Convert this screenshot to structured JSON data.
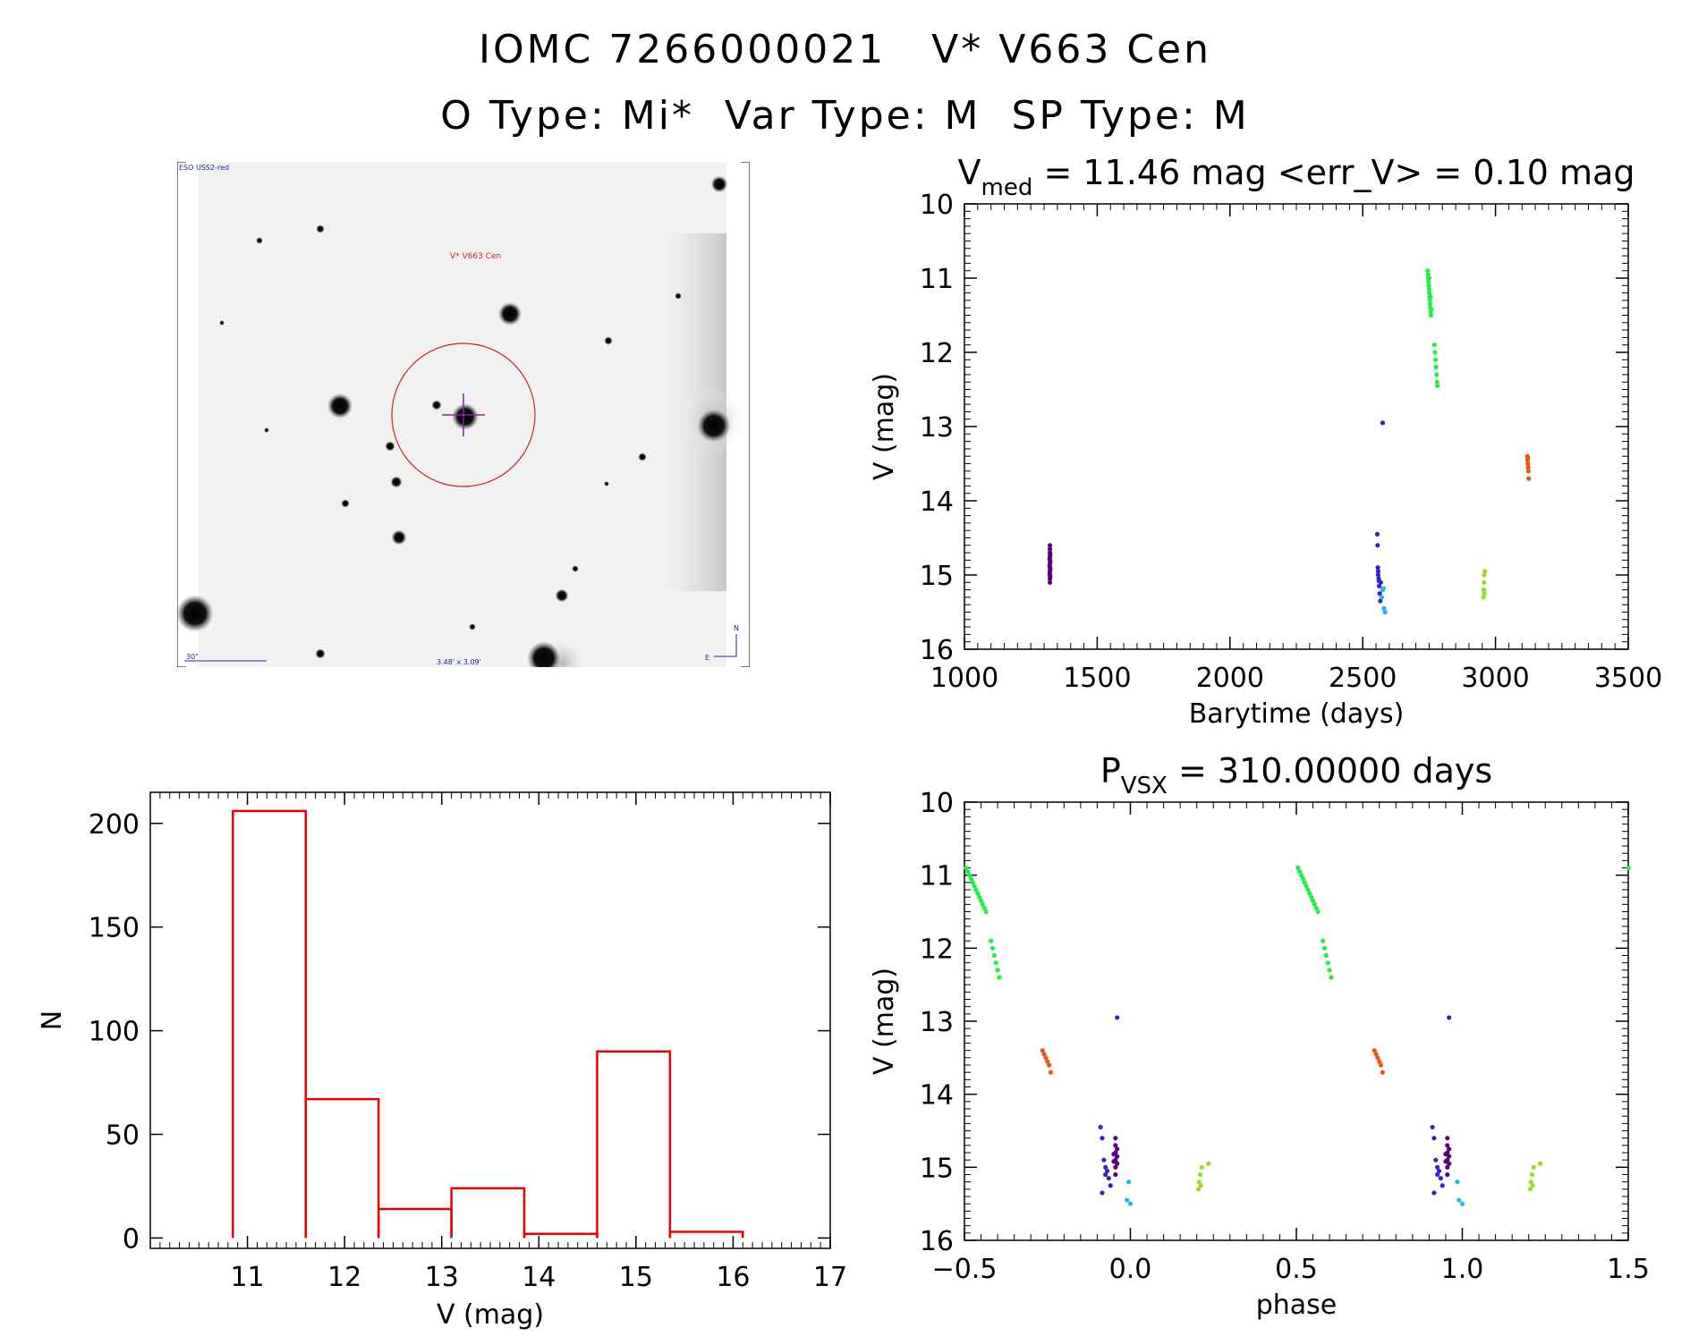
{
  "header": {
    "line1": "IOMC 7266000021   V* V663 Cen",
    "line2": "O Type: Mi*  Var Type: M  SP Type: M"
  },
  "finder": {
    "survey_label": "ESO USS2-red",
    "target_label": "V* V663 Cen",
    "scale_label": "30\"",
    "size_label": "3.48' x 3.09'",
    "north_label": "N",
    "east_label": "E"
  },
  "colors": {
    "hist": "#ee0000",
    "target_circle": "#cc2222",
    "crosshair": "#8822aa",
    "annotation_blue": "#1a2a9a"
  },
  "chart_data": [
    {
      "type": "scatter",
      "id": "lightcurve",
      "title_main": "V",
      "title_sub": "med",
      "title_rest": " = 11.46 mag <err_V> = 0.10 mag",
      "xlabel": "Barytime (days)",
      "ylabel": "V (mag)",
      "xlim": [
        1000,
        3500
      ],
      "ylim": [
        16,
        10
      ],
      "xticks": [
        1000,
        1500,
        2000,
        2500,
        3000,
        3500
      ],
      "yticks": [
        10,
        11,
        12,
        13,
        14,
        15,
        16
      ],
      "series": [
        {
          "name": "season1",
          "color": "#5a007a",
          "points": [
            [
              1322,
              14.6
            ],
            [
              1322,
              14.65
            ],
            [
              1322,
              14.7
            ],
            [
              1322,
              14.75
            ],
            [
              1322,
              14.8
            ],
            [
              1322,
              14.85
            ],
            [
              1322,
              14.9
            ],
            [
              1322,
              14.95
            ],
            [
              1322,
              15.0
            ],
            [
              1322,
              15.05
            ],
            [
              1322,
              15.1
            ],
            [
              1323,
              14.72
            ],
            [
              1323,
              14.82
            ],
            [
              1323,
              14.92
            ],
            [
              1323,
              15.02
            ],
            [
              1321,
              14.78
            ],
            [
              1321,
              14.88
            ],
            [
              1321,
              14.98
            ]
          ]
        },
        {
          "name": "season2a",
          "color": "#3322cc",
          "points": [
            [
              2555,
              14.45
            ],
            [
              2556,
              14.6
            ],
            [
              2557,
              14.9
            ],
            [
              2558,
              15.0
            ],
            [
              2560,
              15.05
            ],
            [
              2562,
              15.15
            ],
            [
              2564,
              15.25
            ],
            [
              2566,
              15.35
            ],
            [
              2568,
              15.1
            ],
            [
              2558,
              14.95
            ],
            [
              2561,
              15.08
            ],
            [
              2575,
              12.95
            ]
          ]
        },
        {
          "name": "season2b",
          "color": "#22b8e8",
          "points": [
            [
              2575,
              15.2
            ],
            [
              2578,
              15.18
            ],
            [
              2580,
              15.45
            ],
            [
              2584,
              15.5
            ],
            [
              2572,
              15.3
            ]
          ]
        },
        {
          "name": "season3",
          "color": "#22ee44",
          "points": [
            [
              2745,
              10.9
            ],
            [
              2746,
              10.95
            ],
            [
              2747,
              11.0
            ],
            [
              2748,
              11.05
            ],
            [
              2749,
              11.1
            ],
            [
              2750,
              11.15
            ],
            [
              2751,
              11.2
            ],
            [
              2752,
              11.25
            ],
            [
              2753,
              11.3
            ],
            [
              2754,
              11.35
            ],
            [
              2755,
              11.4
            ],
            [
              2756,
              11.45
            ],
            [
              2757,
              11.5
            ],
            [
              2758,
              11.42
            ],
            [
              2755,
              11.25
            ],
            [
              2750,
              11.0
            ],
            [
              2770,
              11.9
            ],
            [
              2772,
              12.0
            ],
            [
              2774,
              12.1
            ],
            [
              2776,
              12.2
            ],
            [
              2778,
              12.3
            ],
            [
              2780,
              12.4
            ],
            [
              2781,
              12.45
            ]
          ]
        },
        {
          "name": "season4",
          "color": "#99dd22",
          "points": [
            [
              2955,
              15.3
            ],
            [
              2956,
              15.2
            ],
            [
              2957,
              15.1
            ],
            [
              2958,
              15.25
            ],
            [
              2958,
              15.0
            ],
            [
              2960,
              14.95
            ]
          ]
        },
        {
          "name": "season5",
          "color": "#ee5511",
          "points": [
            [
              3120,
              13.4
            ],
            [
              3121,
              13.45
            ],
            [
              3122,
              13.5
            ],
            [
              3123,
              13.55
            ],
            [
              3124,
              13.6
            ],
            [
              3125,
              13.7
            ],
            [
              3122,
              13.42
            ]
          ]
        }
      ]
    },
    {
      "type": "scatter",
      "id": "phased",
      "title_main": "P",
      "title_sub": "VSX",
      "title_rest": " = 310.00000 days",
      "xlabel": "phase",
      "ylabel": "V (mag)",
      "xlim": [
        -0.5,
        1.5
      ],
      "ylim": [
        16,
        10
      ],
      "xticks": [
        -0.5,
        0.0,
        0.5,
        1.0,
        1.5
      ],
      "xtick_labels": [
        "-0.5",
        "0.0",
        "0.5",
        "1.0",
        "1.5"
      ],
      "yticks": [
        10,
        11,
        12,
        13,
        14,
        15,
        16
      ],
      "series": [
        {
          "name": "season3",
          "color": "#22ee44",
          "points": [
            [
              -0.495,
              10.9
            ],
            [
              -0.49,
              10.95
            ],
            [
              -0.485,
              11.0
            ],
            [
              -0.48,
              11.05
            ],
            [
              -0.475,
              11.1
            ],
            [
              -0.47,
              11.15
            ],
            [
              -0.465,
              11.2
            ],
            [
              -0.46,
              11.25
            ],
            [
              -0.455,
              11.3
            ],
            [
              -0.45,
              11.35
            ],
            [
              -0.445,
              11.4
            ],
            [
              -0.44,
              11.45
            ],
            [
              -0.435,
              11.5
            ],
            [
              -0.42,
              11.9
            ],
            [
              -0.415,
              12.0
            ],
            [
              -0.41,
              12.1
            ],
            [
              -0.405,
              12.2
            ],
            [
              -0.4,
              12.3
            ],
            [
              -0.395,
              12.4
            ],
            [
              0.505,
              10.9
            ],
            [
              0.51,
              10.95
            ],
            [
              0.515,
              11.0
            ],
            [
              0.52,
              11.05
            ],
            [
              0.525,
              11.1
            ],
            [
              0.53,
              11.15
            ],
            [
              0.535,
              11.2
            ],
            [
              0.54,
              11.25
            ],
            [
              0.545,
              11.3
            ],
            [
              0.55,
              11.35
            ],
            [
              0.555,
              11.4
            ],
            [
              0.56,
              11.45
            ],
            [
              0.565,
              11.5
            ],
            [
              0.58,
              11.9
            ],
            [
              0.585,
              12.0
            ],
            [
              0.59,
              12.1
            ],
            [
              0.595,
              12.2
            ],
            [
              0.6,
              12.3
            ],
            [
              0.605,
              12.4
            ],
            [
              1.5,
              10.9
            ]
          ]
        },
        {
          "name": "season5",
          "color": "#ee5511",
          "points": [
            [
              -0.265,
              13.4
            ],
            [
              -0.26,
              13.45
            ],
            [
              -0.255,
              13.5
            ],
            [
              -0.25,
              13.55
            ],
            [
              -0.245,
              13.6
            ],
            [
              -0.24,
              13.7
            ],
            [
              0.735,
              13.4
            ],
            [
              0.74,
              13.45
            ],
            [
              0.745,
              13.5
            ],
            [
              0.75,
              13.55
            ],
            [
              0.755,
              13.6
            ],
            [
              0.76,
              13.7
            ]
          ]
        },
        {
          "name": "season2a",
          "color": "#3322cc",
          "points": [
            [
              -0.09,
              14.45
            ],
            [
              -0.085,
              14.6
            ],
            [
              -0.08,
              14.9
            ],
            [
              -0.075,
              15.0
            ],
            [
              -0.07,
              15.05
            ],
            [
              -0.065,
              15.15
            ],
            [
              -0.06,
              15.25
            ],
            [
              -0.085,
              15.35
            ],
            [
              -0.075,
              15.1
            ],
            [
              -0.04,
              12.95
            ],
            [
              0.91,
              14.45
            ],
            [
              0.915,
              14.6
            ],
            [
              0.92,
              14.9
            ],
            [
              0.925,
              15.0
            ],
            [
              0.93,
              15.05
            ],
            [
              0.935,
              15.15
            ],
            [
              0.94,
              15.25
            ],
            [
              0.915,
              15.35
            ],
            [
              0.925,
              15.1
            ],
            [
              0.96,
              12.95
            ]
          ]
        },
        {
          "name": "season1",
          "color": "#5a007a",
          "points": [
            [
              -0.045,
              14.6
            ],
            [
              -0.045,
              14.7
            ],
            [
              -0.045,
              14.8
            ],
            [
              -0.045,
              14.9
            ],
            [
              -0.045,
              15.0
            ],
            [
              -0.045,
              15.1
            ],
            [
              -0.04,
              14.75
            ],
            [
              -0.04,
              14.85
            ],
            [
              -0.04,
              14.95
            ],
            [
              -0.05,
              14.82
            ],
            [
              -0.05,
              14.92
            ],
            [
              0.955,
              14.6
            ],
            [
              0.955,
              14.7
            ],
            [
              0.955,
              14.8
            ],
            [
              0.955,
              14.9
            ],
            [
              0.955,
              15.0
            ],
            [
              0.955,
              15.1
            ],
            [
              0.96,
              14.75
            ],
            [
              0.96,
              14.85
            ],
            [
              0.96,
              14.95
            ],
            [
              0.95,
              14.82
            ],
            [
              0.95,
              14.92
            ]
          ]
        },
        {
          "name": "season2b",
          "color": "#22b8e8",
          "points": [
            [
              -0.005,
              15.2
            ],
            [
              -0.01,
              15.45
            ],
            [
              0.0,
              15.5
            ],
            [
              0.985,
              15.2
            ],
            [
              0.99,
              15.45
            ],
            [
              1.0,
              15.5
            ]
          ]
        },
        {
          "name": "season4",
          "color": "#99dd22",
          "points": [
            [
              0.205,
              15.3
            ],
            [
              0.207,
              15.2
            ],
            [
              0.21,
              15.1
            ],
            [
              0.212,
              15.25
            ],
            [
              0.215,
              15.0
            ],
            [
              0.235,
              14.95
            ],
            [
              1.205,
              15.3
            ],
            [
              1.207,
              15.2
            ],
            [
              1.21,
              15.1
            ],
            [
              1.212,
              15.25
            ],
            [
              1.215,
              15.0
            ],
            [
              1.235,
              14.95
            ]
          ]
        }
      ]
    },
    {
      "type": "bar",
      "id": "histogram",
      "xlabel": "V (mag)",
      "ylabel": "N",
      "xlim": [
        10.0,
        17.0
      ],
      "ylim": [
        -5,
        215
      ],
      "xticks": [
        11,
        12,
        13,
        14,
        15,
        16,
        17
      ],
      "yticks": [
        0,
        50,
        100,
        150,
        200
      ],
      "bins": [
        {
          "x0": 10.85,
          "x1": 11.6,
          "value": 206
        },
        {
          "x0": 11.6,
          "x1": 12.35,
          "value": 67
        },
        {
          "x0": 12.35,
          "x1": 13.1,
          "value": 14
        },
        {
          "x0": 13.1,
          "x1": 13.85,
          "value": 24
        },
        {
          "x0": 13.85,
          "x1": 14.6,
          "value": 2
        },
        {
          "x0": 14.6,
          "x1": 15.35,
          "value": 90
        },
        {
          "x0": 15.35,
          "x1": 16.1,
          "value": 3
        }
      ]
    }
  ]
}
